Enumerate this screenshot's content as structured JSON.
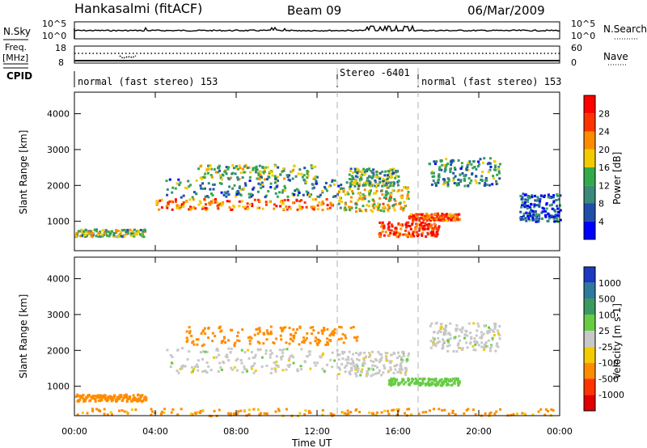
{
  "header": {
    "title": "Hankasalmi (fitACF)",
    "beam": "Beam 09",
    "date": "06/Mar/2009"
  },
  "nsky": {
    "label": "N.Sky",
    "left_top": "10^5",
    "left_bottom": "10^0",
    "right_top": "10^5",
    "right_bottom": "10^0",
    "right_label": "N.Search"
  },
  "freq": {
    "label_line1": "Freq.",
    "label_line2": "[MHz]",
    "left_top": "18",
    "left_bottom": "8",
    "right_top": "60",
    "right_bottom": "0",
    "right_label": "Nave"
  },
  "cpid": {
    "label": "CPID",
    "segments": [
      {
        "start_h": 0.0,
        "end_h": 13.0,
        "text": "normal (fast stereo) 153"
      },
      {
        "start_h": 13.0,
        "end_h": 17.0,
        "text": "Stereo -6401"
      },
      {
        "start_h": 17.0,
        "end_h": 24.0,
        "text": "normal (fast stereo) 153"
      }
    ]
  },
  "axes": {
    "xlabel": "Time UT",
    "x_ticks": [
      "00:00",
      "04:00",
      "08:00",
      "12:00",
      "16:00",
      "20:00",
      "00:00"
    ],
    "x_range_h": [
      0,
      24
    ],
    "ylabel": "Slant Range [km]",
    "y_ticks": [
      1000,
      2000,
      3000,
      4000
    ],
    "y_range_km": [
      180,
      4600
    ],
    "mode_change_lines_h": [
      13.0,
      17.0
    ]
  },
  "chart_data": [
    {
      "type": "heatmap",
      "name": "power",
      "colorbar_label": "Power [dB]",
      "colorbar_ticks": [
        "4",
        "8",
        "12",
        "16",
        "20",
        "24",
        "28"
      ],
      "colorbar_range": [
        0,
        30
      ],
      "colors": [
        "#0000ff",
        "#1f4fa8",
        "#3a8a7a",
        "#33aa4a",
        "#f2cc00",
        "#ff8c00",
        "#ff3300",
        "#ff0000"
      ],
      "regions": [
        {
          "t0": 0.0,
          "t1": 3.5,
          "r0": 600,
          "r1": 800,
          "level": 14
        },
        {
          "t0": 4.0,
          "t1": 12.8,
          "r0": 1350,
          "r1": 1650,
          "level": 22
        },
        {
          "t0": 4.5,
          "t1": 13.5,
          "r0": 1700,
          "r1": 2200,
          "level": 10
        },
        {
          "t0": 6.0,
          "t1": 12.0,
          "r0": 2200,
          "r1": 2600,
          "level": 13
        },
        {
          "t0": 13.0,
          "t1": 16.5,
          "r0": 1300,
          "r1": 2000,
          "level": 16
        },
        {
          "t0": 13.5,
          "t1": 16.0,
          "r0": 2000,
          "r1": 2500,
          "level": 12
        },
        {
          "t0": 15.0,
          "t1": 18.0,
          "r0": 600,
          "r1": 1000,
          "level": 26
        },
        {
          "t0": 16.5,
          "t1": 19.0,
          "r0": 1050,
          "r1": 1250,
          "level": 24
        },
        {
          "t0": 17.5,
          "t1": 21.0,
          "r0": 2000,
          "r1": 2800,
          "level": 10
        },
        {
          "t0": 22.0,
          "t1": 24.0,
          "r0": 1000,
          "r1": 1800,
          "level": 6
        }
      ]
    },
    {
      "type": "heatmap",
      "name": "velocity",
      "colorbar_label": "Velocity [m s-1]",
      "colorbar_ticks": [
        "1000",
        "500",
        "100",
        "25",
        "-25",
        "-100",
        "-500",
        "-1000"
      ],
      "colors": [
        "#1a3ac0",
        "#2f7a9a",
        "#3a9a60",
        "#66cc44",
        "#c8c8c8",
        "#f2cc00",
        "#ff8c00",
        "#ff3300",
        "#e00000"
      ],
      "regions": [
        {
          "t0": 0.0,
          "t1": 3.5,
          "r0": 600,
          "r1": 800,
          "v": -150
        },
        {
          "t0": 4.5,
          "t1": 13.0,
          "r0": 1400,
          "r1": 2100,
          "v": 0
        },
        {
          "t0": 5.5,
          "t1": 14.0,
          "r0": 2150,
          "r1": 2700,
          "v": -200
        },
        {
          "t0": 13.0,
          "t1": 16.5,
          "r0": 1300,
          "r1": 2000,
          "v": 0
        },
        {
          "t0": 15.5,
          "t1": 19.0,
          "r0": 1050,
          "r1": 1250,
          "v": 60
        },
        {
          "t0": 17.5,
          "t1": 21.0,
          "r0": 2000,
          "r1": 2800,
          "v": 0
        },
        {
          "t0": 0.0,
          "t1": 24.0,
          "r0": 200,
          "r1": 400,
          "v": -120
        }
      ]
    }
  ]
}
